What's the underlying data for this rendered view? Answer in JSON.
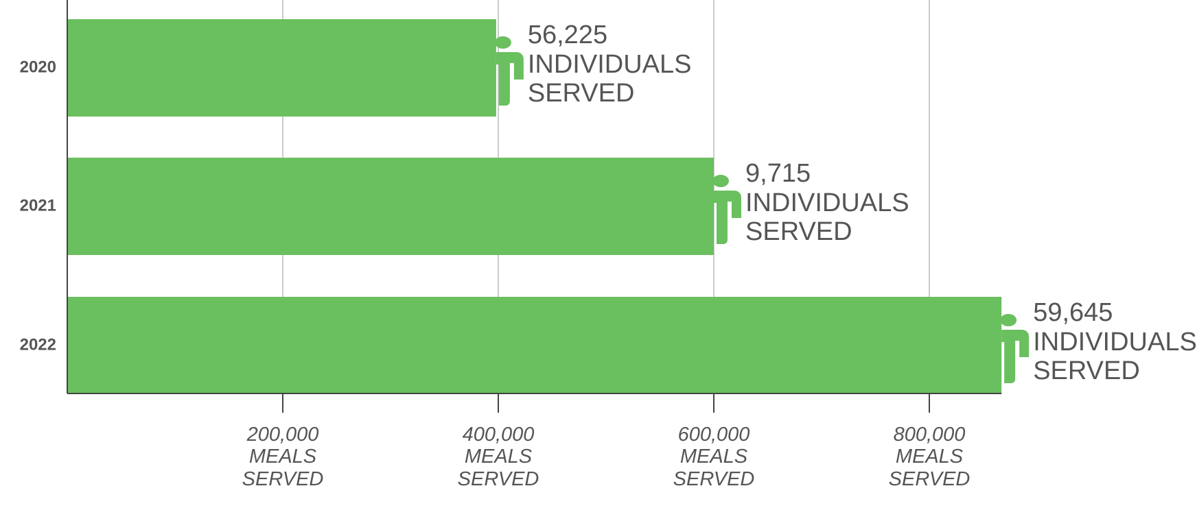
{
  "chart_data": {
    "type": "bar",
    "orientation": "horizontal",
    "categories": [
      "2020",
      "2021",
      "2022"
    ],
    "values": [
      398000,
      600000,
      867000
    ],
    "color": "#6abf5e",
    "xlim": [
      0,
      1000000
    ],
    "xticks": [
      {
        "value": 200000,
        "label": "200,000 MEALS SERVED"
      },
      {
        "value": 400000,
        "label": "400,000 MEALS SERVED"
      },
      {
        "value": 600000,
        "label": "600,000 MEALS SERVED"
      },
      {
        "value": 800000,
        "label": "800,000 MEALS SERVED"
      }
    ],
    "grid": true,
    "individuals": {
      "values": [
        56225,
        9715,
        59645
      ],
      "value_labels": [
        "56,225 INDIVIDUALS SERVED",
        "9,715 INDIVIDUALS SERVED",
        "59,645 INDIVIDUALS SERVED"
      ]
    }
  }
}
